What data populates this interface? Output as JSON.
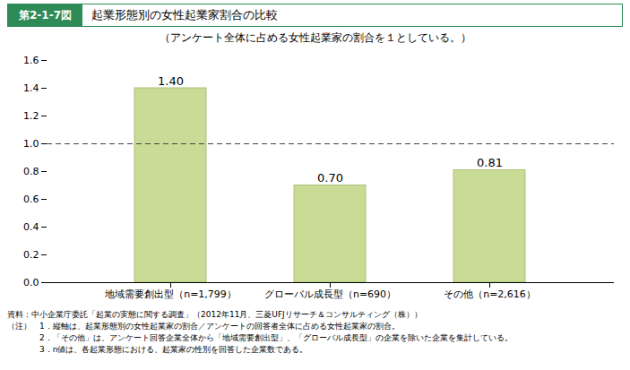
{
  "chart_data": {
    "type": "bar",
    "title_box": "第2-1-7図",
    "title": "起業形態別の女性起業家割合の比較",
    "subtitle": "（アンケート全体に占める女性起業家の割合を１としている。）",
    "categories": [
      "地域需要創出型（n=1,799）",
      "グローバル成長型（n=690）",
      "その他（n=2,616）"
    ],
    "values": [
      1.4,
      0.7,
      0.81
    ],
    "value_labels": [
      "1.40",
      "0.70",
      "0.81"
    ],
    "data_labels": true,
    "color": "#c8dc96",
    "edge_color": "#a0b464",
    "header_color": "#2e8b57",
    "ylim": [
      0,
      1.6
    ],
    "yticks": [
      {
        "value": 0,
        "label": "0.0"
      },
      0.2,
      0.4,
      0.6,
      0.8,
      {
        "value": 1,
        "label": "1.0"
      },
      1.2,
      1.4,
      1.6
    ],
    "reference_lines": [
      {
        "y": 1,
        "line_style": "dashed",
        "color": "#444444"
      }
    ],
    "grid": false,
    "footer": [
      "資料：中小企業庁委託「起業の実態に関する調査」（2012年11月、三菱UFJリサーチ＆コンサルティング（株））",
      "（注）　1．縦軸は、起業形態別の女性起業家の割合／アンケートの回答者全体に占める女性起業家の割合。",
      "　　　　2．「その他」は、アンケート回答企業全体から「地域需要創出型」、「グローバル成長型」の企業を除いた企業を集計している。",
      "　　　　3．n値は、各起業形態における、起業家の性別を回答した企業数である。"
    ]
  }
}
